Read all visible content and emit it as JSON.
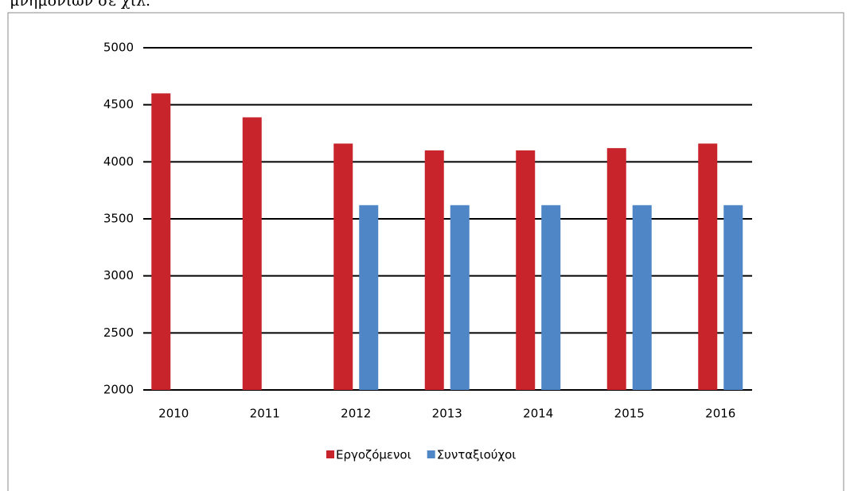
{
  "caption": "μνημονίων σε χιλ.",
  "chart_data": {
    "type": "bar",
    "categories": [
      "2010",
      "2011",
      "2012",
      "2013",
      "2014",
      "2015",
      "2016"
    ],
    "series": [
      {
        "name": "Εργοζόμενοι",
        "color": "#c8242c",
        "values": [
          4600,
          4390,
          4160,
          4100,
          4100,
          4120,
          4160
        ]
      },
      {
        "name": "Συνταξιούχοι",
        "color": "#4f86c6",
        "values": [
          null,
          null,
          3620,
          3620,
          3620,
          3620,
          3620
        ]
      }
    ],
    "ylim": [
      2000,
      5000
    ],
    "yticks": [
      2000,
      2500,
      3000,
      3500,
      4000,
      4500,
      5000
    ],
    "grid": true
  }
}
